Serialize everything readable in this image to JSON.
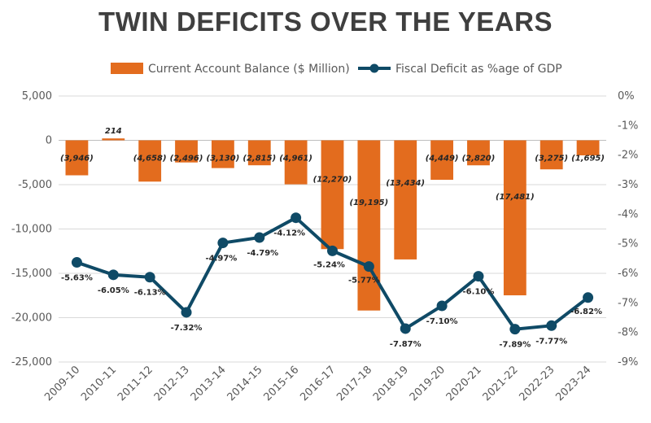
{
  "chart_data": {
    "type": "bar",
    "title": "TWIN DEFICITS OVER THE YEARS",
    "categories": [
      "2009-10",
      "2010-11",
      "2011-12",
      "2012-13",
      "2013-14",
      "2014-15",
      "2015-16",
      "2016-17",
      "2017-18",
      "2018-19",
      "2019-20",
      "2020-21",
      "2021-22",
      "2022-23",
      "2023-24"
    ],
    "series": [
      {
        "name": "Current Account Balance ($ Million)",
        "type": "bar",
        "axis": "left",
        "color": "#e36c1e",
        "values": [
          -3946,
          214,
          -4658,
          -2496,
          -3130,
          -2815,
          -4961,
          -12270,
          -19195,
          -13434,
          -4449,
          -2820,
          -17481,
          -3275,
          -1695
        ],
        "labels": [
          "(3,946)",
          "214",
          "(4,658)",
          "(2,496)",
          "(3,130)",
          "(2,815)",
          "(4,961)",
          "(12,270)",
          "(19,195)",
          "(13,434)",
          "(4,449)",
          "(2,820)",
          "(17,481)",
          "(3,275)",
          "(1,695)"
        ]
      },
      {
        "name": "Fiscal Deficit as %age of GDP",
        "type": "line",
        "axis": "right",
        "color": "#0f4a66",
        "values": [
          -5.63,
          -6.05,
          -6.13,
          -7.32,
          -4.97,
          -4.79,
          -4.12,
          -5.24,
          -5.77,
          -7.87,
          -7.1,
          -6.1,
          -7.89,
          -7.77,
          -6.82
        ],
        "labels": [
          "-5.63%",
          "-6.05%",
          "-6.13%",
          "-7.32%",
          "-4.97%",
          "-4.79%",
          "-4.12%",
          "-5.24%",
          "-5.77%",
          "-7.87%",
          "-7.10%",
          "-6.10%",
          "-7.89%",
          "-7.77%",
          "-6.82%"
        ]
      }
    ],
    "y_left": {
      "ylim": [
        -25000,
        5000
      ],
      "ticks": [
        5000,
        0,
        -5000,
        -10000,
        -15000,
        -20000,
        -25000
      ],
      "tick_labels": [
        "5,000",
        "0",
        "-5,000",
        "-10,000",
        "-15,000",
        "-20,000",
        "-25,000"
      ]
    },
    "y_right": {
      "ylim": [
        -9,
        0
      ],
      "ticks": [
        0,
        -1,
        -2,
        -3,
        -4,
        -5,
        -6,
        -7,
        -8,
        -9
      ],
      "tick_labels": [
        "0%",
        "-1%",
        "-2%",
        "-3%",
        "-4%",
        "-5%",
        "-6%",
        "-7%",
        "-8%",
        "-9%"
      ]
    },
    "grid": "horizontal",
    "legend": "top"
  }
}
